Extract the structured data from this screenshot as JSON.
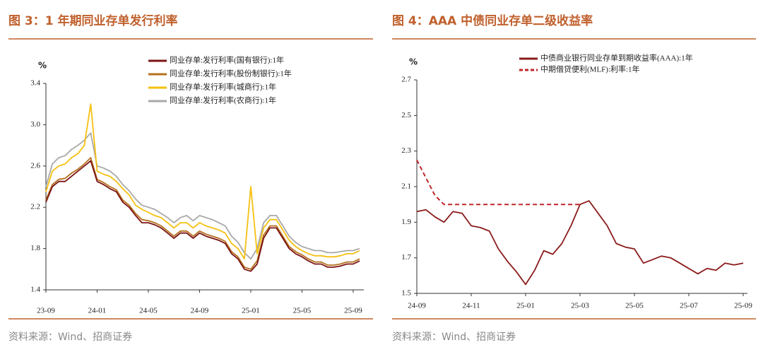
{
  "chart_data": [
    {
      "type": "line",
      "title": "图 3：1 年期同业存单发行利率",
      "y_label": "%",
      "source": "资料来源：Wind、招商证券",
      "categories": [
        "23-09",
        null,
        null,
        null,
        null,
        null,
        null,
        null,
        "24-01",
        null,
        null,
        null,
        null,
        null,
        null,
        null,
        "24-05",
        null,
        null,
        null,
        null,
        null,
        null,
        null,
        "24-09",
        null,
        null,
        null,
        null,
        null,
        null,
        null,
        "25-01",
        null,
        null,
        null,
        null,
        null,
        null,
        null,
        "25-05",
        null,
        null,
        null,
        null,
        null,
        null,
        null,
        "25-09",
        null
      ],
      "ylim": [
        1.4,
        3.4
      ],
      "yticks": [
        1.4,
        1.8,
        2.2,
        2.6,
        {
          "value": 3,
          "label": "3.0"
        },
        3.4
      ],
      "series": [
        {
          "name": "同业存单:发行利率(国有银行):1年",
          "color": "#7b1414",
          "values": [
            2.25,
            2.4,
            2.45,
            2.45,
            2.5,
            2.55,
            2.6,
            2.65,
            2.45,
            2.42,
            2.38,
            2.35,
            2.25,
            2.2,
            2.12,
            2.05,
            2.05,
            2.03,
            2.0,
            1.95,
            1.9,
            1.95,
            1.95,
            1.9,
            1.95,
            1.92,
            1.9,
            1.88,
            1.85,
            1.75,
            1.7,
            1.6,
            1.58,
            1.65,
            1.9,
            2.0,
            2.0,
            1.9,
            1.8,
            1.75,
            1.72,
            1.68,
            1.65,
            1.65,
            1.62,
            1.62,
            1.63,
            1.65,
            1.65,
            1.68
          ]
        },
        {
          "name": "同业存单:发行利率(股份制银行):1年",
          "color": "#b5701c",
          "values": [
            2.27,
            2.42,
            2.47,
            2.48,
            2.53,
            2.57,
            2.62,
            2.68,
            2.47,
            2.44,
            2.4,
            2.37,
            2.27,
            2.22,
            2.14,
            2.08,
            2.07,
            2.05,
            2.02,
            1.97,
            1.92,
            1.97,
            1.97,
            1.92,
            1.97,
            1.94,
            1.92,
            1.9,
            1.87,
            1.77,
            1.72,
            1.62,
            1.6,
            1.68,
            1.93,
            2.02,
            2.02,
            1.92,
            1.82,
            1.77,
            1.74,
            1.7,
            1.67,
            1.67,
            1.64,
            1.64,
            1.65,
            1.67,
            1.67,
            1.7
          ]
        },
        {
          "name": "同业存单:发行利率(城商行):1年",
          "color": "#f5c010",
          "values": [
            2.35,
            2.55,
            2.6,
            2.62,
            2.68,
            2.72,
            2.8,
            3.2,
            2.55,
            2.52,
            2.5,
            2.45,
            2.38,
            2.32,
            2.22,
            2.18,
            2.15,
            2.12,
            2.1,
            2.05,
            2.0,
            2.05,
            2.05,
            2.0,
            2.05,
            2.02,
            2.0,
            1.98,
            1.95,
            1.85,
            1.8,
            1.7,
            2.4,
            1.75,
            2.0,
            2.08,
            2.08,
            1.98,
            1.88,
            1.82,
            1.78,
            1.75,
            1.73,
            1.73,
            1.72,
            1.72,
            1.73,
            1.75,
            1.75,
            1.78
          ]
        },
        {
          "name": "同业存单:发行利率(农商行):1年",
          "color": "#a8a8a8",
          "values": [
            2.4,
            2.62,
            2.68,
            2.7,
            2.76,
            2.8,
            2.85,
            2.92,
            2.6,
            2.58,
            2.55,
            2.5,
            2.42,
            2.36,
            2.28,
            2.22,
            2.2,
            2.18,
            2.14,
            2.1,
            2.05,
            2.1,
            2.12,
            2.07,
            2.12,
            2.1,
            2.08,
            2.05,
            2.02,
            1.92,
            1.86,
            1.76,
            1.7,
            1.8,
            2.05,
            2.12,
            2.12,
            2.02,
            1.92,
            1.86,
            1.82,
            1.8,
            1.78,
            1.78,
            1.76,
            1.76,
            1.77,
            1.78,
            1.78,
            1.8
          ]
        }
      ]
    },
    {
      "type": "line",
      "title": "图 4：AAA 中债同业存单二级收益率",
      "y_label": "%",
      "source": "资料来源：Wind、招商证券",
      "categories": [
        "24-09",
        null,
        null,
        null,
        null,
        null,
        "24-11",
        null,
        null,
        null,
        null,
        null,
        "25-01",
        null,
        null,
        null,
        null,
        null,
        "25-03",
        null,
        null,
        null,
        null,
        null,
        "25-05",
        null,
        null,
        null,
        null,
        null,
        "25-07",
        null,
        null,
        null,
        null,
        null,
        "25-09"
      ],
      "ylim": [
        1.5,
        2.7
      ],
      "yticks": [
        1.5,
        1.7,
        1.9,
        2.1,
        2.3,
        2.5,
        2.7
      ],
      "series": [
        {
          "name": "中债商业银行同业存单到期收益率(AAA):1年",
          "color": "#8b1a1a",
          "line_style": "solid",
          "values": [
            1.96,
            1.97,
            1.93,
            1.9,
            1.96,
            1.95,
            1.88,
            1.87,
            1.85,
            1.75,
            1.68,
            1.62,
            1.55,
            1.63,
            1.74,
            1.72,
            1.78,
            1.88,
            2.0,
            2.02,
            1.95,
            1.88,
            1.78,
            1.76,
            1.75,
            1.67,
            1.69,
            1.71,
            1.7,
            1.67,
            1.64,
            1.61,
            1.64,
            1.63,
            1.67,
            1.66,
            1.67
          ]
        },
        {
          "name": "中期借贷便利(MLF):利率:1年",
          "color": "#c0262a",
          "line_style": "dashed",
          "values": [
            2.25,
            2.15,
            2.05,
            2.0,
            2.0,
            2.0,
            2.0,
            2.0,
            2.0,
            2.0,
            2.0,
            2.0,
            2.0,
            2.0,
            2.0,
            2.0,
            2.0,
            2.0,
            2.0,
            null,
            null,
            null,
            null,
            null,
            null,
            null,
            null,
            null,
            null,
            null,
            null,
            null,
            null,
            null,
            null,
            null,
            null
          ]
        }
      ]
    }
  ]
}
